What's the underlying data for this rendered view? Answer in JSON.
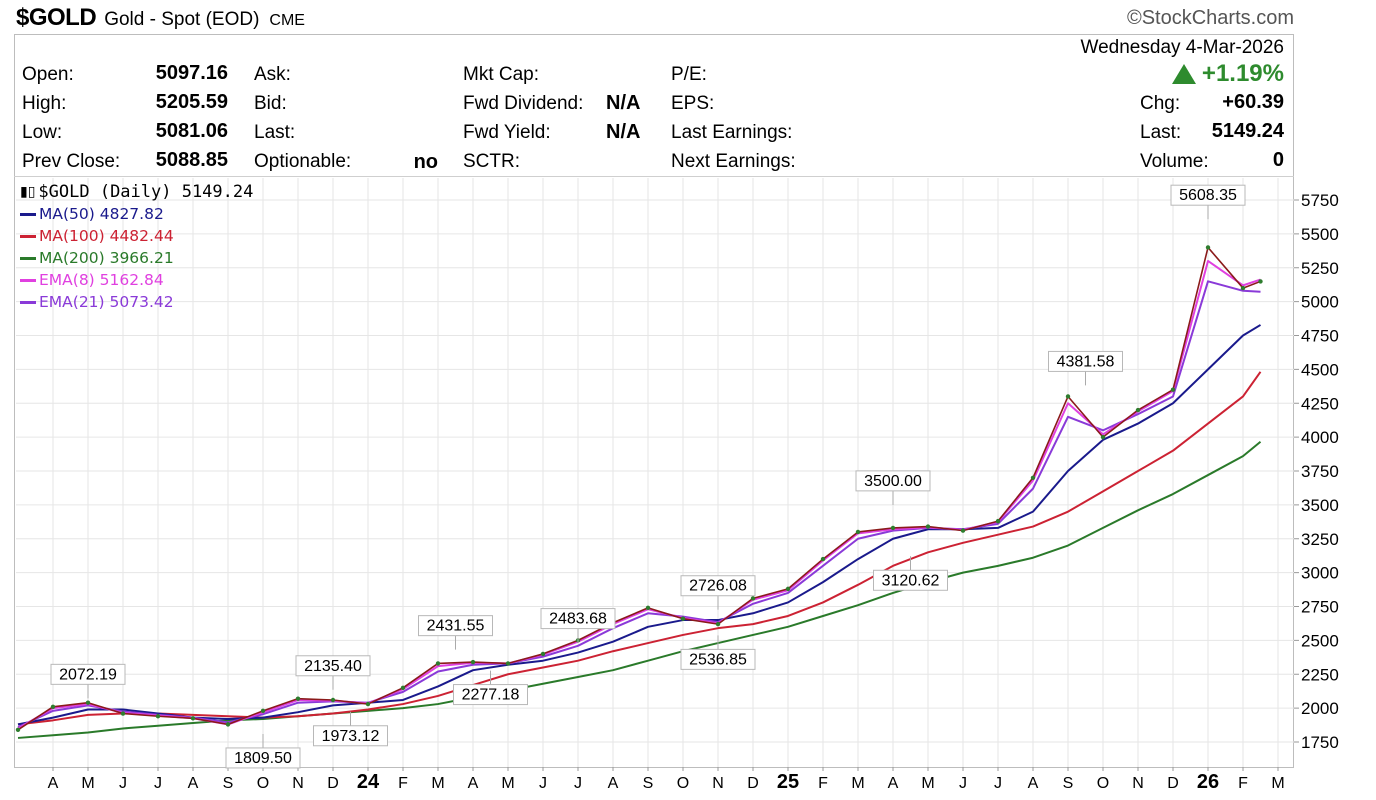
{
  "header": {
    "symbol": "$GOLD",
    "description": "Gold - Spot (EOD)",
    "exchange": "CME",
    "brand": "©StockCharts.com"
  },
  "quote": {
    "date": "Wednesday  4-Mar-2026",
    "change_pct": "+1.19%",
    "open_label": "Open:",
    "open": "5097.16",
    "high_label": "High:",
    "high": "5205.59",
    "low_label": "Low:",
    "low": "5081.06",
    "prev_close_label": "Prev Close:",
    "prev_close": "5088.85",
    "ask_label": "Ask:",
    "bid_label": "Bid:",
    "last_label": "Last:",
    "optionable_label": "Optionable:",
    "optionable": "no",
    "mkt_cap_label": "Mkt Cap:",
    "fwd_dividend_label": "Fwd Dividend:",
    "fwd_dividend": "N/A",
    "fwd_yield_label": "Fwd Yield:",
    "fwd_yield": "N/A",
    "sctr_label": "SCTR:",
    "pe_label": "P/E:",
    "eps_label": "EPS:",
    "last_earnings_label": "Last Earnings:",
    "next_earnings_label": "Next Earnings:",
    "chg_label": "Chg:",
    "chg": "+60.39",
    "last2_label": "Last:",
    "last2": "5149.24",
    "volume_label": "Volume:",
    "volume": "0"
  },
  "legend": {
    "title": "$GOLD (Daily) 5149.24",
    "items": [
      {
        "label": "MA(50) 4827.82",
        "color": "#1a1a8c"
      },
      {
        "label": "MA(100) 4482.44",
        "color": "#cc2233"
      },
      {
        "label": "MA(200) 3966.21",
        "color": "#2a7a2a"
      },
      {
        "label": "EMA(8) 5162.84",
        "color": "#e040e0"
      },
      {
        "label": "EMA(21) 5073.42",
        "color": "#8a3ad8"
      }
    ]
  },
  "chart_data": {
    "type": "line",
    "title": "$GOLD (Daily) 5149.24",
    "ylim": [
      1650,
      5800
    ],
    "yticks": [
      1750,
      2000,
      2250,
      2500,
      2750,
      3000,
      3250,
      3500,
      3750,
      4000,
      4250,
      4500,
      4750,
      5000,
      5250,
      5500,
      5750
    ],
    "xticks": [
      "A",
      "M",
      "J",
      "J",
      "A",
      "S",
      "O",
      "N",
      "D",
      "24",
      "F",
      "M",
      "A",
      "M",
      "J",
      "J",
      "A",
      "S",
      "O",
      "N",
      "D",
      "25",
      "F",
      "M",
      "A",
      "M",
      "J",
      "J",
      "A",
      "S",
      "O",
      "N",
      "D",
      "26",
      "F",
      "M"
    ],
    "x": [
      0,
      1,
      2,
      3,
      4,
      5,
      6,
      7,
      8,
      9,
      10,
      11,
      12,
      13,
      14,
      15,
      16,
      17,
      18,
      19,
      20,
      21,
      22,
      23,
      24,
      25,
      26,
      27,
      28,
      29,
      30,
      31,
      32,
      33,
      34,
      35,
      35.5
    ],
    "series": [
      {
        "name": "$GOLD",
        "color": "#8b1a1a",
        "values": [
          1840,
          2010,
          2040,
          1960,
          1940,
          1925,
          1880,
          1980,
          2070,
          2060,
          2030,
          2150,
          2330,
          2340,
          2330,
          2400,
          2500,
          2630,
          2740,
          2660,
          2620,
          2810,
          2880,
          3100,
          3300,
          3330,
          3340,
          3310,
          3380,
          3700,
          4300,
          4000,
          4200,
          4350,
          5400,
          5100,
          5149
        ]
      },
      {
        "name": "MA(50)",
        "color": "#1a1a8c",
        "values": [
          1880,
          1930,
          1990,
          1990,
          1960,
          1930,
          1920,
          1930,
          1970,
          2020,
          2040,
          2060,
          2160,
          2280,
          2320,
          2350,
          2410,
          2490,
          2600,
          2650,
          2650,
          2700,
          2780,
          2930,
          3100,
          3250,
          3320,
          3320,
          3330,
          3450,
          3750,
          3980,
          4100,
          4250,
          4500,
          4750,
          4828
        ]
      },
      {
        "name": "MA(100)",
        "color": "#cc2233",
        "values": [
          1880,
          1910,
          1950,
          1960,
          1960,
          1950,
          1940,
          1930,
          1940,
          1960,
          1990,
          2030,
          2090,
          2170,
          2250,
          2300,
          2350,
          2420,
          2480,
          2540,
          2590,
          2620,
          2680,
          2780,
          2910,
          3050,
          3150,
          3220,
          3280,
          3340,
          3450,
          3600,
          3750,
          3900,
          4100,
          4300,
          4482
        ]
      },
      {
        "name": "MA(200)",
        "color": "#2a7a2a",
        "values": [
          1780,
          1800,
          1820,
          1850,
          1870,
          1890,
          1910,
          1920,
          1940,
          1960,
          1980,
          2000,
          2030,
          2080,
          2130,
          2180,
          2230,
          2280,
          2350,
          2420,
          2480,
          2540,
          2600,
          2680,
          2760,
          2850,
          2930,
          3000,
          3050,
          3110,
          3200,
          3330,
          3460,
          3580,
          3720,
          3860,
          3966
        ]
      },
      {
        "name": "EMA(8)",
        "color": "#e040e0",
        "values": [
          1850,
          2000,
          2030,
          1965,
          1945,
          1925,
          1880,
          1970,
          2060,
          2055,
          2035,
          2140,
          2310,
          2335,
          2330,
          2395,
          2490,
          2620,
          2730,
          2665,
          2625,
          2800,
          2870,
          3090,
          3290,
          3320,
          3335,
          3315,
          3375,
          3680,
          4250,
          4020,
          4190,
          4340,
          5300,
          5120,
          5163
        ]
      },
      {
        "name": "EMA(21)",
        "color": "#8a3ad8",
        "values": [
          1860,
          1980,
          2020,
          1975,
          1950,
          1930,
          1895,
          1955,
          2040,
          2050,
          2040,
          2120,
          2270,
          2320,
          2330,
          2380,
          2460,
          2590,
          2700,
          2675,
          2635,
          2770,
          2850,
          3050,
          3250,
          3310,
          3330,
          3320,
          3360,
          3620,
          4150,
          4050,
          4170,
          4300,
          5150,
          5080,
          5073
        ]
      }
    ],
    "annotations": [
      {
        "label": "2072.19",
        "x": 2.0,
        "value": 2072.19,
        "pos": "above"
      },
      {
        "label": "1809.50",
        "x": 7.0,
        "value": 1809.5,
        "pos": "below"
      },
      {
        "label": "2135.40",
        "x": 9.0,
        "value": 2135.4,
        "pos": "above"
      },
      {
        "label": "1973.12",
        "x": 9.5,
        "value": 1973.12,
        "pos": "below"
      },
      {
        "label": "2431.55",
        "x": 12.5,
        "value": 2431.55,
        "pos": "above"
      },
      {
        "label": "2277.18",
        "x": 13.5,
        "value": 2277.18,
        "pos": "below"
      },
      {
        "label": "2483.68",
        "x": 16.0,
        "value": 2483.68,
        "pos": "above"
      },
      {
        "label": "2536.85",
        "x": 20.0,
        "value": 2536.85,
        "pos": "below"
      },
      {
        "label": "2726.08",
        "x": 20.0,
        "value": 2726.08,
        "pos": "above"
      },
      {
        "label": "3500.00",
        "x": 25.0,
        "value": 3500.0,
        "pos": "above"
      },
      {
        "label": "3120.62",
        "x": 25.5,
        "value": 3120.62,
        "pos": "below"
      },
      {
        "label": "4381.58",
        "x": 30.5,
        "value": 4381.58,
        "pos": "above"
      },
      {
        "label": "5608.35",
        "x": 34.0,
        "value": 5608.35,
        "pos": "above"
      }
    ]
  }
}
